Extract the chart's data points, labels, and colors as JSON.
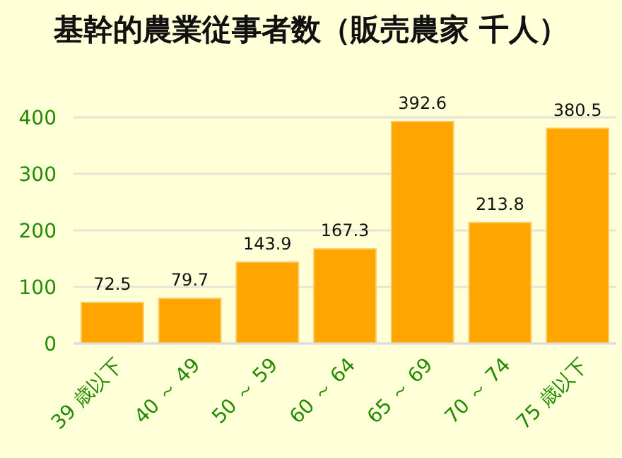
{
  "chart_data": {
    "type": "bar",
    "title": "基幹的農業従事者数（販売農家 千人）",
    "categories": [
      "39 歳以下",
      "40 ～ 49",
      "50 ～ 59",
      "60 ～ 64",
      "65 ～ 69",
      "70 ～ 74",
      "75 歳以下"
    ],
    "values": [
      72.5,
      79.7,
      143.9,
      167.3,
      392.6,
      213.8,
      380.5
    ],
    "color": "#ffa500",
    "ylim": [
      0,
      400
    ],
    "yticks": [
      0,
      100,
      200,
      300,
      400
    ],
    "grid": "y",
    "data_labels": true
  }
}
